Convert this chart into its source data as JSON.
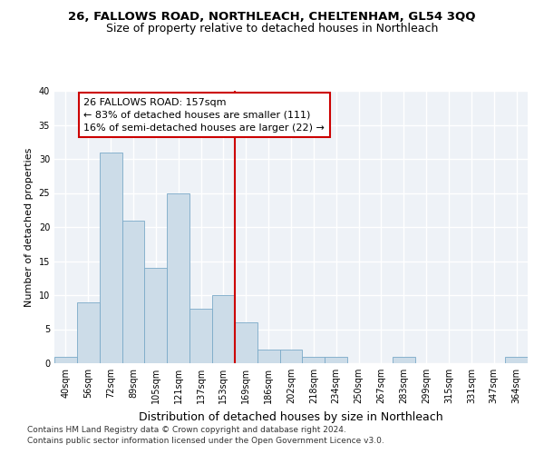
{
  "title1": "26, FALLOWS ROAD, NORTHLEACH, CHELTENHAM, GL54 3QQ",
  "title2": "Size of property relative to detached houses in Northleach",
  "xlabel": "Distribution of detached houses by size in Northleach",
  "ylabel": "Number of detached properties",
  "bin_labels": [
    "40sqm",
    "56sqm",
    "72sqm",
    "89sqm",
    "105sqm",
    "121sqm",
    "137sqm",
    "153sqm",
    "169sqm",
    "186sqm",
    "202sqm",
    "218sqm",
    "234sqm",
    "250sqm",
    "267sqm",
    "283sqm",
    "299sqm",
    "315sqm",
    "331sqm",
    "347sqm",
    "364sqm"
  ],
  "values": [
    1,
    9,
    31,
    21,
    14,
    25,
    8,
    10,
    6,
    2,
    2,
    1,
    1,
    0,
    0,
    1,
    0,
    0,
    0,
    0,
    1
  ],
  "bar_color": "#ccdce8",
  "bar_edge_color": "#7aaac8",
  "vline_color": "#cc0000",
  "annotation_text": "26 FALLOWS ROAD: 157sqm\n← 83% of detached houses are smaller (111)\n16% of semi-detached houses are larger (22) →",
  "annotation_box_color": "#cc0000",
  "ylim": [
    0,
    40
  ],
  "yticks": [
    0,
    5,
    10,
    15,
    20,
    25,
    30,
    35,
    40
  ],
  "footnote1": "Contains HM Land Registry data © Crown copyright and database right 2024.",
  "footnote2": "Contains public sector information licensed under the Open Government Licence v3.0.",
  "bg_color": "#eef2f7",
  "grid_color": "#ffffff",
  "title1_fontsize": 9.5,
  "title2_fontsize": 9,
  "xlabel_fontsize": 9,
  "ylabel_fontsize": 8,
  "tick_fontsize": 7,
  "annotation_fontsize": 8,
  "footnote_fontsize": 6.5
}
